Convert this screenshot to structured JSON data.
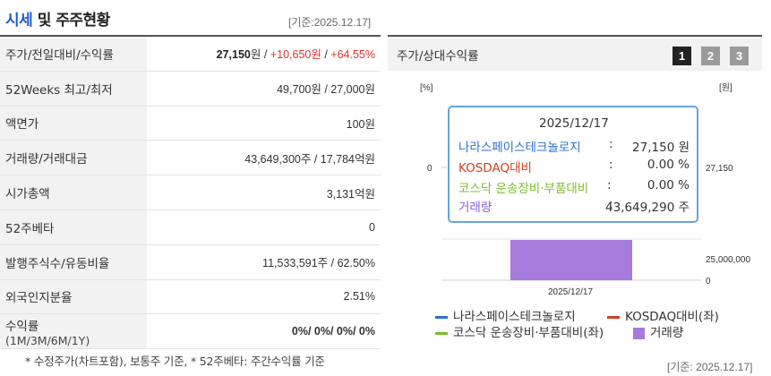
{
  "header": {
    "title_part1": "시세",
    "title_part2": "및 주주현황",
    "asof": "[기준:2025.12.17]"
  },
  "rows": [
    {
      "label": "주가/전일대비/수익률",
      "price": "27,150",
      "unit": "원",
      "sep": " / ",
      "change": "+10,650원",
      "sep2": " / ",
      "rate": "+64.55%"
    },
    {
      "label": "52Weeks 최고/최저",
      "value": "49,700원 / 27,000원"
    },
    {
      "label": "액면가",
      "value": "100원"
    },
    {
      "label": "거래량/거래대금",
      "value": "43,649,300주 / 17,784억원"
    },
    {
      "label": "시가총액",
      "value": "3,131억원"
    },
    {
      "label": "52주베타",
      "value": "0"
    },
    {
      "label": "발행주식수/유동비율",
      "value": "11,533,591주 / 62.50%"
    },
    {
      "label": "외국인지분율",
      "value": "2.51%"
    },
    {
      "label": "수익률",
      "label_sub": "(1M/3M/6M/1Y)",
      "value": "0%/ 0%/ 0%/ 0%"
    }
  ],
  "footnote": "* 수정주가(차트포함), 보통주 기준, * 52주베타: 주간수익률 기준",
  "chart_panel": {
    "title": "주가/상대수익률",
    "period_buttons": [
      "1",
      "2",
      "3"
    ],
    "selected_button": "1",
    "left_unit": "[%]",
    "right_unit": "[원]",
    "asof": "[기준: 2025.12.17]"
  },
  "chart_data": {
    "type": "bar",
    "title": "",
    "categories": [
      "2025/12/17"
    ],
    "left_axis_tick": "0",
    "right_axis_ticks": [
      "27,150",
      "25,000,000",
      "0"
    ],
    "series": [
      {
        "name": "나라스페이스테크놀로지",
        "kind": "line",
        "axis": "right",
        "values": [
          27150
        ],
        "color": "#2e6fd1"
      },
      {
        "name": "KOSDAQ대비(좌)",
        "kind": "line",
        "axis": "left",
        "values": [
          0
        ],
        "color": "#d1401f"
      },
      {
        "name": "코스닥 운송장비·부품대비(좌)",
        "kind": "line",
        "axis": "left",
        "values": [
          0
        ],
        "color": "#7dbb2f"
      },
      {
        "name": "거래량",
        "kind": "bar",
        "values": [
          43649290
        ],
        "color": "#a57bdc"
      }
    ],
    "volume_ylim": [
      0,
      43649290
    ],
    "legend_position": "bottom"
  },
  "tooltip": {
    "date": "2025/12/17",
    "rows": [
      {
        "name": "나라스페이스테크놀로지",
        "colon": ":",
        "value": "27,150 원",
        "color": "#2e6fd1"
      },
      {
        "name": "KOSDAQ대비",
        "colon": ":",
        "value": "0.00 %",
        "color": "#d1401f"
      },
      {
        "name": "코스닥 운송장비·부품대비",
        "colon": ":",
        "value": "0.00 %",
        "color": "#7dbb2f"
      },
      {
        "name": "거래량",
        "colon": ":",
        "value": "43,649,290 주",
        "color": "#8a5fd0"
      }
    ]
  }
}
